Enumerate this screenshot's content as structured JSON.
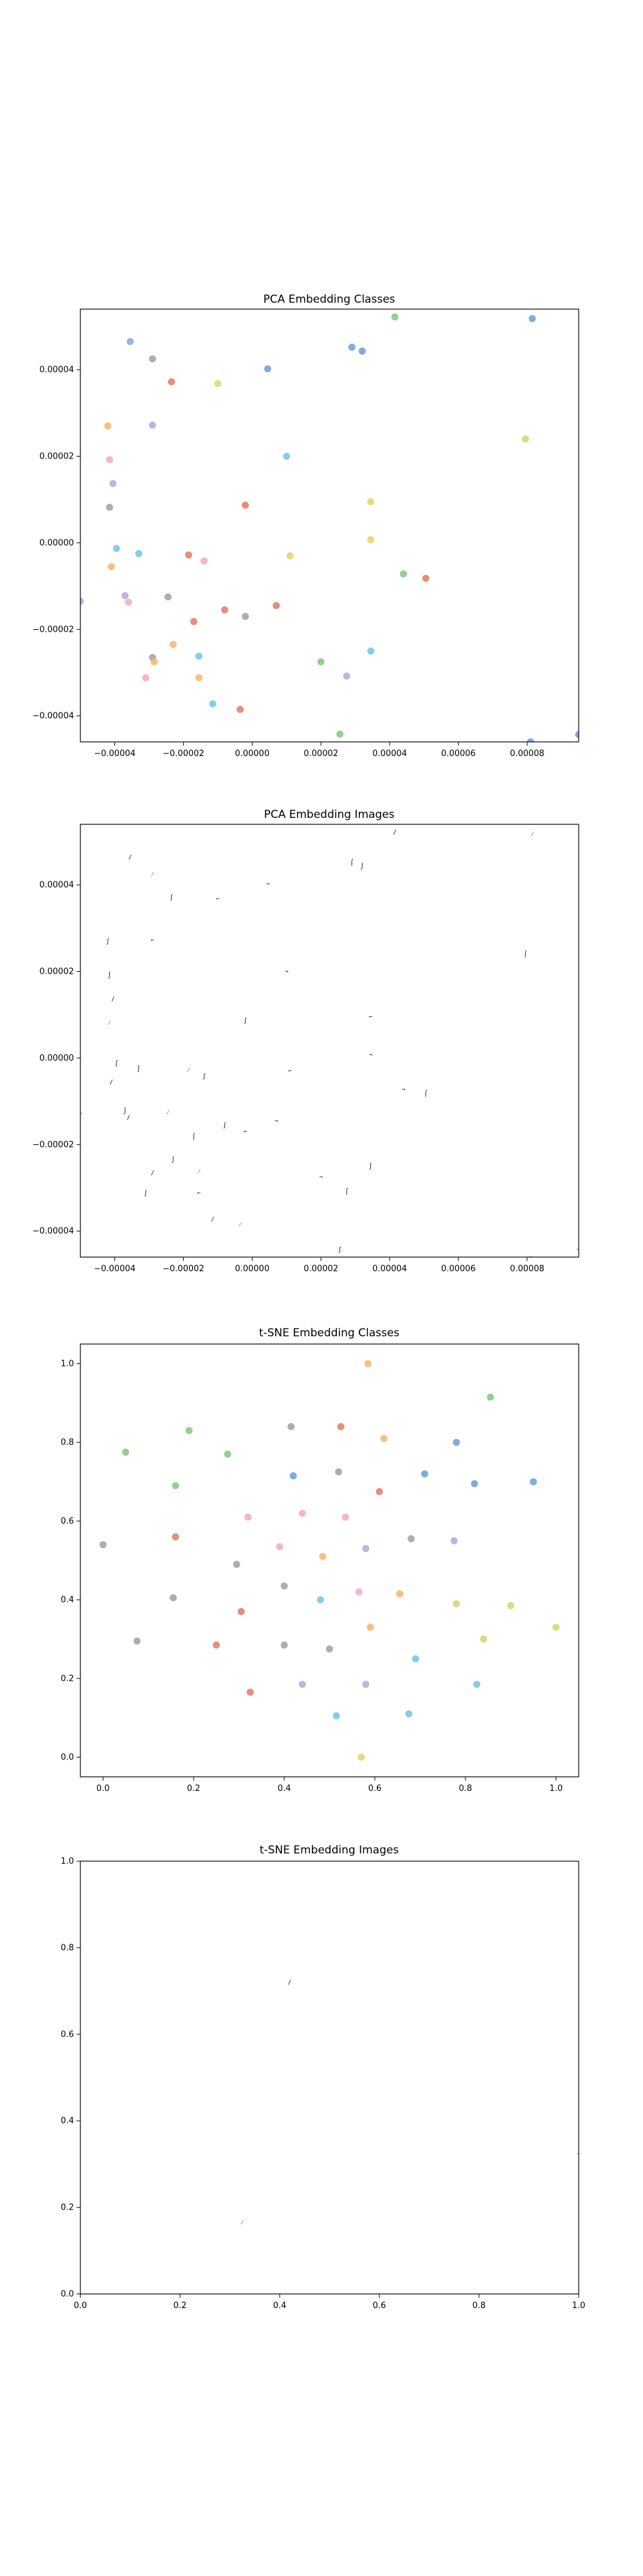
{
  "chart_data": [
    {
      "type": "scatter",
      "title": "PCA Embedding Classes",
      "xlabel": "",
      "ylabel": "",
      "xlim": [
        -5e-05,
        9.5e-05
      ],
      "ylim": [
        -4.6e-05,
        5.4e-05
      ],
      "xticks": [
        -4e-05,
        -2e-05,
        0.0,
        2e-05,
        4e-05,
        6e-05,
        8e-05
      ],
      "xtick_labels": [
        "−0.00004",
        "−0.00002",
        "0.00000",
        "0.00002",
        "0.00004",
        "0.00006",
        "0.00008"
      ],
      "yticks": [
        -4e-05,
        -2e-05,
        0.0,
        2e-05,
        4e-05
      ],
      "ytick_labels": [
        "−0.00004",
        "−0.00002",
        "0.00000",
        "0.00002",
        "0.00004"
      ],
      "grid": false,
      "points": [
        {
          "x": -3.55e-05,
          "y": 4.65e-05,
          "color": "#8fa8d6"
        },
        {
          "x": -2.9e-05,
          "y": 4.25e-05,
          "color": "#a0a0a0"
        },
        {
          "x": -2.35e-05,
          "y": 3.72e-05,
          "color": "#e07a63"
        },
        {
          "x": -1e-05,
          "y": 3.68e-05,
          "color": "#e3d36b"
        },
        {
          "x": 4.5e-06,
          "y": 4.02e-05,
          "color": "#6a9ed9"
        },
        {
          "x": 2.9e-05,
          "y": 4.52e-05,
          "color": "#6a9ed9"
        },
        {
          "x": 3.2e-05,
          "y": 4.43e-05,
          "color": "#6a9ed9"
        },
        {
          "x": 4.15e-05,
          "y": 5.22e-05,
          "color": "#7fc87a"
        },
        {
          "x": 8.15e-05,
          "y": 5.18e-05,
          "color": "#6a9ed9"
        },
        {
          "x": -4.2e-05,
          "y": 2.7e-05,
          "color": "#f5b566"
        },
        {
          "x": -2.9e-05,
          "y": 2.72e-05,
          "color": "#b3a8d9"
        },
        {
          "x": 1e-05,
          "y": 2e-05,
          "color": "#6fc6ea"
        },
        {
          "x": 7.95e-05,
          "y": 2.4e-05,
          "color": "#d8d36b"
        },
        {
          "x": -4.15e-05,
          "y": 1.92e-05,
          "color": "#f3a7c7"
        },
        {
          "x": -4.05e-05,
          "y": 1.37e-05,
          "color": "#b3a8d9"
        },
        {
          "x": -4.15e-05,
          "y": 8.2e-06,
          "color": "#a0a0a0"
        },
        {
          "x": -2e-06,
          "y": 8.7e-06,
          "color": "#e07a63"
        },
        {
          "x": 3.45e-05,
          "y": 9.5e-06,
          "color": "#e3d36b"
        },
        {
          "x": 3.45e-05,
          "y": 7e-07,
          "color": "#e3d36b"
        },
        {
          "x": -3.95e-05,
          "y": -1.3e-06,
          "color": "#6fc6ea"
        },
        {
          "x": -3.3e-05,
          "y": -2.5e-06,
          "color": "#6fc6ea"
        },
        {
          "x": -4.1e-05,
          "y": -5.5e-06,
          "color": "#f5b566"
        },
        {
          "x": -1.85e-05,
          "y": -2.8e-06,
          "color": "#e07a63"
        },
        {
          "x": -1.4e-05,
          "y": -4.2e-06,
          "color": "#f3a7c7"
        },
        {
          "x": 1.1e-05,
          "y": -3e-06,
          "color": "#e3d36b"
        },
        {
          "x": 4.4e-05,
          "y": -7.2e-06,
          "color": "#7fc87a"
        },
        {
          "x": 5.05e-05,
          "y": -8.2e-06,
          "color": "#e07a63"
        },
        {
          "x": -3.7e-05,
          "y": -1.22e-05,
          "color": "#b3a8d9"
        },
        {
          "x": -3.6e-05,
          "y": -1.37e-05,
          "color": "#f3a7c7"
        },
        {
          "x": -2.45e-05,
          "y": -1.25e-05,
          "color": "#a0a0a0"
        },
        {
          "x": -8e-06,
          "y": -1.55e-05,
          "color": "#e07a63"
        },
        {
          "x": -2e-06,
          "y": -1.7e-05,
          "color": "#a0a0a0"
        },
        {
          "x": 7e-06,
          "y": -1.45e-05,
          "color": "#e07a63"
        },
        {
          "x": -1.7e-05,
          "y": -1.82e-05,
          "color": "#e07a63"
        },
        {
          "x": -2.3e-05,
          "y": -2.35e-05,
          "color": "#f5b566"
        },
        {
          "x": -2.9e-05,
          "y": -2.65e-05,
          "color": "#a0a0a0"
        },
        {
          "x": -2.85e-05,
          "y": -2.75e-05,
          "color": "#f5b566"
        },
        {
          "x": -1.55e-05,
          "y": -2.62e-05,
          "color": "#6fc6ea"
        },
        {
          "x": -3.1e-05,
          "y": -3.12e-05,
          "color": "#f3a7c7"
        },
        {
          "x": -1.55e-05,
          "y": -3.12e-05,
          "color": "#f5b566"
        },
        {
          "x": 2e-05,
          "y": -2.75e-05,
          "color": "#7fc87a"
        },
        {
          "x": 2.75e-05,
          "y": -3.08e-05,
          "color": "#b3a8d9"
        },
        {
          "x": 3.45e-05,
          "y": -2.5e-05,
          "color": "#6fc6ea"
        },
        {
          "x": -1.15e-05,
          "y": -3.72e-05,
          "color": "#6fc6ea"
        },
        {
          "x": -3.5e-06,
          "y": -3.85e-05,
          "color": "#e07a63"
        },
        {
          "x": 2.55e-05,
          "y": -4.42e-05,
          "color": "#7fc87a"
        },
        {
          "x": 8.1e-05,
          "y": -4.6e-05,
          "color": "#6a9ed9"
        },
        {
          "x": 9.5e-05,
          "y": -4.43e-05,
          "color": "#6a9ed9"
        },
        {
          "x": -5e-05,
          "y": -1.35e-05,
          "color": "#b3a8d9"
        }
      ]
    },
    {
      "type": "scatter",
      "title": "PCA Embedding Images",
      "xlabel": "",
      "ylabel": "",
      "xlim": [
        -5e-05,
        9.5e-05
      ],
      "ylim": [
        -4.6e-05,
        5.4e-05
      ],
      "xticks": [
        -4e-05,
        -2e-05,
        0.0,
        2e-05,
        4e-05,
        6e-05,
        8e-05
      ],
      "xtick_labels": [
        "−0.00004",
        "−0.00002",
        "0.00000",
        "0.00002",
        "0.00004",
        "0.00006",
        "0.00008"
      ],
      "yticks": [
        -4e-05,
        -2e-05,
        0.0,
        2e-05,
        4e-05
      ],
      "ytick_labels": [
        "−0.00004",
        "−0.00002",
        "0.00000",
        "0.00002",
        "0.00004"
      ],
      "grid": false,
      "points": [
        {
          "x": -3.55e-05,
          "y": 4.65e-05
        },
        {
          "x": -2.9e-05,
          "y": 4.25e-05
        },
        {
          "x": -2.35e-05,
          "y": 3.72e-05
        },
        {
          "x": -1e-05,
          "y": 3.68e-05
        },
        {
          "x": 4.5e-06,
          "y": 4.02e-05
        },
        {
          "x": 2.9e-05,
          "y": 4.52e-05
        },
        {
          "x": 3.2e-05,
          "y": 4.43e-05
        },
        {
          "x": 4.15e-05,
          "y": 5.22e-05
        },
        {
          "x": 8.15e-05,
          "y": 5.18e-05
        },
        {
          "x": -4.2e-05,
          "y": 2.7e-05
        },
        {
          "x": -2.9e-05,
          "y": 2.72e-05
        },
        {
          "x": 1e-05,
          "y": 2e-05
        },
        {
          "x": 7.95e-05,
          "y": 2.4e-05
        },
        {
          "x": -4.15e-05,
          "y": 1.92e-05
        },
        {
          "x": -4.05e-05,
          "y": 1.37e-05
        },
        {
          "x": -4.15e-05,
          "y": 8.2e-06
        },
        {
          "x": -2e-06,
          "y": 8.7e-06
        },
        {
          "x": 3.45e-05,
          "y": 9.5e-06
        },
        {
          "x": 3.45e-05,
          "y": 7e-07
        },
        {
          "x": -3.95e-05,
          "y": -1.3e-06
        },
        {
          "x": -3.3e-05,
          "y": -2.5e-06
        },
        {
          "x": -4.1e-05,
          "y": -5.5e-06
        },
        {
          "x": -1.85e-05,
          "y": -2.8e-06
        },
        {
          "x": -1.4e-05,
          "y": -4.2e-06
        },
        {
          "x": 1.1e-05,
          "y": -3e-06
        },
        {
          "x": 4.4e-05,
          "y": -7.2e-06
        },
        {
          "x": 5.05e-05,
          "y": -8.2e-06
        },
        {
          "x": -3.7e-05,
          "y": -1.22e-05
        },
        {
          "x": -3.6e-05,
          "y": -1.37e-05
        },
        {
          "x": -2.45e-05,
          "y": -1.25e-05
        },
        {
          "x": -8e-06,
          "y": -1.55e-05
        },
        {
          "x": -2e-06,
          "y": -1.7e-05
        },
        {
          "x": 7e-06,
          "y": -1.45e-05
        },
        {
          "x": -1.7e-05,
          "y": -1.82e-05
        },
        {
          "x": -2.3e-05,
          "y": -2.35e-05
        },
        {
          "x": -2.9e-05,
          "y": -2.65e-05
        },
        {
          "x": -1.55e-05,
          "y": -2.62e-05
        },
        {
          "x": -3.1e-05,
          "y": -3.12e-05
        },
        {
          "x": -1.55e-05,
          "y": -3.12e-05
        },
        {
          "x": 2e-05,
          "y": -2.75e-05
        },
        {
          "x": 2.75e-05,
          "y": -3.08e-05
        },
        {
          "x": 3.45e-05,
          "y": -2.5e-05
        },
        {
          "x": -1.15e-05,
          "y": -3.72e-05
        },
        {
          "x": -3.5e-06,
          "y": -3.85e-05
        },
        {
          "x": 2.55e-05,
          "y": -4.42e-05
        },
        {
          "x": 8.1e-05,
          "y": -4.6e-05
        },
        {
          "x": 9.5e-05,
          "y": -4.43e-05
        },
        {
          "x": -5e-05,
          "y": -1.35e-05
        }
      ]
    },
    {
      "type": "scatter",
      "title": "t-SNE Embedding Classes",
      "xlabel": "",
      "ylabel": "",
      "xlim": [
        -0.05,
        1.05
      ],
      "ylim": [
        -0.05,
        1.05
      ],
      "xticks": [
        0.0,
        0.2,
        0.4,
        0.6,
        0.8,
        1.0
      ],
      "xtick_labels": [
        "0.0",
        "0.2",
        "0.4",
        "0.6",
        "0.8",
        "1.0"
      ],
      "yticks": [
        0.0,
        0.2,
        0.4,
        0.6,
        0.8,
        1.0
      ],
      "ytick_labels": [
        "0.0",
        "0.2",
        "0.4",
        "0.6",
        "0.8",
        "1.0"
      ],
      "grid": false,
      "points": [
        {
          "x": 0.585,
          "y": 1.0,
          "color": "#f5b566"
        },
        {
          "x": 0.855,
          "y": 0.915,
          "color": "#7fc87a"
        },
        {
          "x": 0.415,
          "y": 0.84,
          "color": "#a0a0a0"
        },
        {
          "x": 0.525,
          "y": 0.84,
          "color": "#e07a63"
        },
        {
          "x": 0.19,
          "y": 0.83,
          "color": "#7fc87a"
        },
        {
          "x": 0.62,
          "y": 0.81,
          "color": "#f5b566"
        },
        {
          "x": 0.78,
          "y": 0.8,
          "color": "#6a9ed9"
        },
        {
          "x": 0.05,
          "y": 0.775,
          "color": "#7fc87a"
        },
        {
          "x": 0.275,
          "y": 0.77,
          "color": "#7fc87a"
        },
        {
          "x": 0.52,
          "y": 0.725,
          "color": "#a0a0a0"
        },
        {
          "x": 0.42,
          "y": 0.715,
          "color": "#6a9ed9"
        },
        {
          "x": 0.71,
          "y": 0.72,
          "color": "#6a9ed9"
        },
        {
          "x": 0.82,
          "y": 0.695,
          "color": "#6a9ed9"
        },
        {
          "x": 0.95,
          "y": 0.7,
          "color": "#6a9ed9"
        },
        {
          "x": 0.16,
          "y": 0.69,
          "color": "#7fc87a"
        },
        {
          "x": 0.61,
          "y": 0.675,
          "color": "#e07a63"
        },
        {
          "x": 0.44,
          "y": 0.62,
          "color": "#f3a7c7"
        },
        {
          "x": 0.32,
          "y": 0.61,
          "color": "#f3a7c7"
        },
        {
          "x": 0.535,
          "y": 0.61,
          "color": "#f3a7c7"
        },
        {
          "x": 0.16,
          "y": 0.56,
          "color": "#e07a63"
        },
        {
          "x": 0.68,
          "y": 0.555,
          "color": "#a0a0a0"
        },
        {
          "x": 0.775,
          "y": 0.55,
          "color": "#b3a8d9"
        },
        {
          "x": 0.0,
          "y": 0.54,
          "color": "#a0a0a0"
        },
        {
          "x": 0.39,
          "y": 0.535,
          "color": "#f3a7c7"
        },
        {
          "x": 0.58,
          "y": 0.53,
          "color": "#b3a8d9"
        },
        {
          "x": 0.485,
          "y": 0.51,
          "color": "#f5b566"
        },
        {
          "x": 0.295,
          "y": 0.49,
          "color": "#a0a0a0"
        },
        {
          "x": 0.4,
          "y": 0.435,
          "color": "#a0a0a0"
        },
        {
          "x": 0.565,
          "y": 0.42,
          "color": "#f3a7c7"
        },
        {
          "x": 0.655,
          "y": 0.415,
          "color": "#f5b566"
        },
        {
          "x": 0.155,
          "y": 0.405,
          "color": "#a0a0a0"
        },
        {
          "x": 0.48,
          "y": 0.4,
          "color": "#6fc6ea"
        },
        {
          "x": 0.78,
          "y": 0.39,
          "color": "#d8d36b"
        },
        {
          "x": 0.9,
          "y": 0.385,
          "color": "#d8d36b"
        },
        {
          "x": 0.305,
          "y": 0.37,
          "color": "#e07a63"
        },
        {
          "x": 0.59,
          "y": 0.33,
          "color": "#f5b566"
        },
        {
          "x": 1.0,
          "y": 0.33,
          "color": "#d8d36b"
        },
        {
          "x": 0.075,
          "y": 0.295,
          "color": "#a0a0a0"
        },
        {
          "x": 0.25,
          "y": 0.285,
          "color": "#e07a63"
        },
        {
          "x": 0.4,
          "y": 0.285,
          "color": "#a0a0a0"
        },
        {
          "x": 0.5,
          "y": 0.275,
          "color": "#a0a0a0"
        },
        {
          "x": 0.84,
          "y": 0.3,
          "color": "#d8d36b"
        },
        {
          "x": 0.69,
          "y": 0.25,
          "color": "#6fc6ea"
        },
        {
          "x": 0.44,
          "y": 0.185,
          "color": "#b3a8d9"
        },
        {
          "x": 0.58,
          "y": 0.185,
          "color": "#b3a8d9"
        },
        {
          "x": 0.825,
          "y": 0.185,
          "color": "#6fc6ea"
        },
        {
          "x": 0.325,
          "y": 0.165,
          "color": "#e07a63"
        },
        {
          "x": 0.515,
          "y": 0.105,
          "color": "#6fc6ea"
        },
        {
          "x": 0.675,
          "y": 0.11,
          "color": "#6fc6ea"
        },
        {
          "x": 0.57,
          "y": 0.0,
          "color": "#e3d36b"
        }
      ]
    },
    {
      "type": "scatter",
      "title": "t-SNE Embedding Images",
      "xlabel": "",
      "ylabel": "",
      "xlim": [
        0.0,
        1.0
      ],
      "ylim": [
        0.0,
        1.0
      ],
      "xticks": [
        0.0,
        0.2,
        0.4,
        0.6,
        0.8,
        1.0
      ],
      "xtick_labels": [
        "0.0",
        "0.2",
        "0.4",
        "0.6",
        "0.8",
        "1.0"
      ],
      "yticks": [
        0.0,
        0.2,
        0.4,
        0.6,
        0.8,
        1.0
      ],
      "ytick_labels": [
        "0.0",
        "0.2",
        "0.4",
        "0.6",
        "0.8",
        "1.0"
      ],
      "grid": false,
      "points": [
        {
          "x": 0.42,
          "y": 0.72
        },
        {
          "x": 0.325,
          "y": 0.165
        },
        {
          "x": 1.0,
          "y": 0.33
        }
      ]
    }
  ]
}
